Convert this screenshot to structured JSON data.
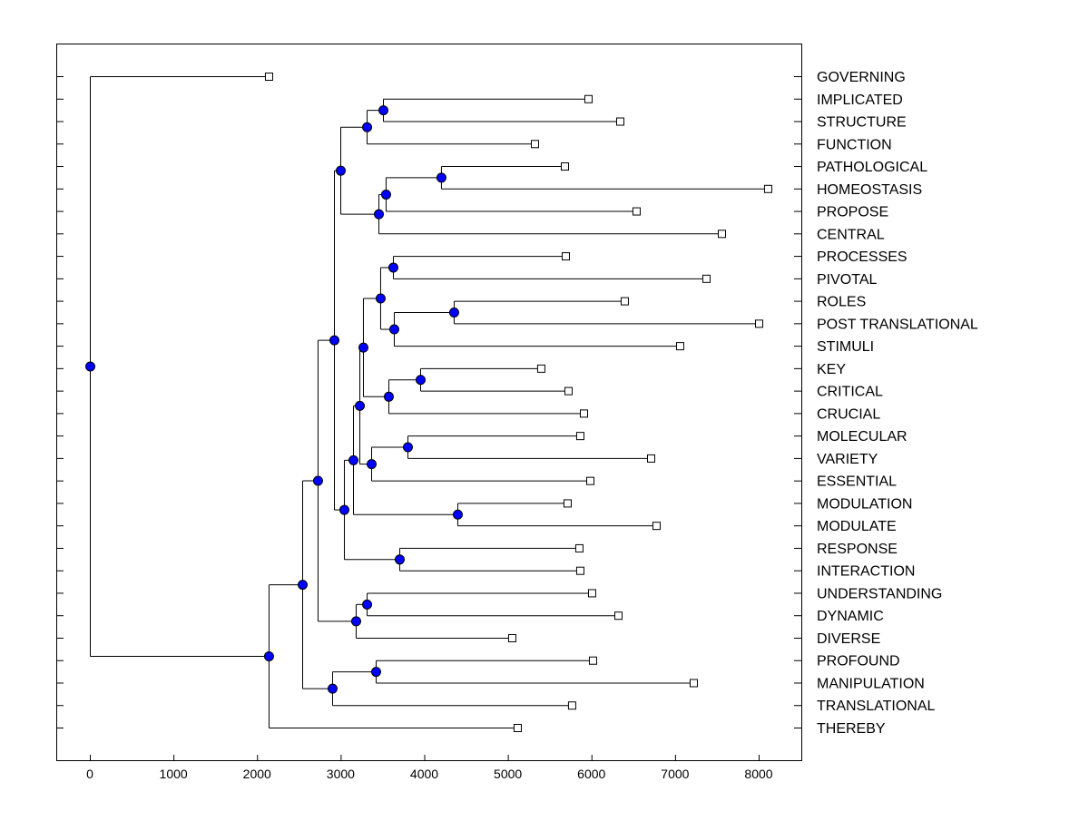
{
  "chart_data": {
    "type": "dendrogram",
    "orientation": "horizontal",
    "xlim": [
      -400,
      8500
    ],
    "x_ticks": [
      0,
      1000,
      2000,
      3000,
      4000,
      5000,
      6000,
      7000,
      8000
    ],
    "x_tick_labels": [
      "0",
      "1000",
      "2000",
      "3000",
      "4000",
      "5000",
      "6000",
      "7000",
      "8000"
    ],
    "leaf_order": [
      "GOVERNING",
      "IMPLICATED",
      "STRUCTURE",
      "FUNCTION",
      "PATHOLOGICAL",
      "HOMEOSTASIS",
      "PROPOSE",
      "CENTRAL",
      "PROCESSES",
      "PIVOTAL",
      "ROLES",
      "POST TRANSLATIONAL",
      "STIMULI",
      "KEY",
      "CRITICAL",
      "CRUCIAL",
      "MOLECULAR",
      "VARIETY",
      "ESSENTIAL",
      "MODULATION",
      "MODULATE",
      "RESPONSE",
      "INTERACTION",
      "UNDERSTANDING",
      "DYNAMIC",
      "DIVERSE",
      "PROFOUND",
      "MANIPULATION",
      "TRANSLATIONAL",
      "THEREBY"
    ],
    "colors": {
      "internal_node": "#0000ff",
      "leaf_node": "#ffffff",
      "line": "#000000"
    },
    "tree": {
      "value": 0,
      "children": [
        {
          "label": "GOVERNING",
          "value": 2138
        },
        {
          "value": 2138,
          "children": [
            {
              "value": 2540,
              "children": [
                {
                  "value": 2724,
                  "children": [
                    {
                      "value": 2920,
                      "children": [
                        {
                          "value": 2996,
                          "children": [
                            {
                              "value": 3311,
                              "children": [
                                {
                                  "value": 3506,
                                  "children": [
                                    {
                                      "label": "IMPLICATED",
                                      "value": 5959
                                    },
                                    {
                                      "label": "STRUCTURE",
                                      "value": 6339
                                    }
                                  ]
                                },
                                {
                                  "label": "FUNCTION",
                                  "value": 5319
                                }
                              ]
                            },
                            {
                              "value": 3452,
                              "children": [
                                {
                                  "value": 3538,
                                  "children": [
                                    {
                                      "value": 4200,
                                      "children": [
                                        {
                                          "label": "PATHOLOGICAL",
                                          "value": 5677
                                        },
                                        {
                                          "label": "HOMEOSTASIS",
                                          "value": 8108
                                        }
                                      ]
                                    },
                                    {
                                      "label": "PROPOSE",
                                      "value": 6534
                                    }
                                  ]
                                },
                                {
                                  "label": "CENTRAL",
                                  "value": 7555
                                }
                              ]
                            }
                          ]
                        },
                        {
                          "value": 3039,
                          "children": [
                            {
                              "value": 3148,
                              "children": [
                                {
                                  "value": 3224,
                                  "children": [
                                    {
                                      "value": 3267,
                                      "children": [
                                        {
                                          "value": 3473,
                                          "children": [
                                            {
                                              "value": 3625,
                                              "children": [
                                                {
                                                  "label": "PROCESSES",
                                                  "value": 5688
                                                },
                                                {
                                                  "label": "PIVOTAL",
                                                  "value": 7370
                                                }
                                              ]
                                            },
                                            {
                                              "value": 3636,
                                              "children": [
                                                {
                                                  "value": 4352,
                                                  "children": [
                                                    {
                                                      "label": "ROLES",
                                                      "value": 6393
                                                    },
                                                    {
                                                      "label": "POST TRANSLATIONAL",
                                                      "value": 8000
                                                    }
                                                  ]
                                                },
                                                {
                                                  "label": "STIMULI",
                                                  "value": 7055
                                                }
                                              ]
                                            }
                                          ]
                                        },
                                        {
                                          "value": 3571,
                                          "children": [
                                            {
                                              "value": 3951,
                                              "children": [
                                                {
                                                  "label": "KEY",
                                                  "value": 5394
                                                },
                                                {
                                                  "label": "CRITICAL",
                                                  "value": 5720
                                                }
                                              ]
                                            },
                                            {
                                              "label": "CRUCIAL",
                                              "value": 5905
                                            }
                                          ]
                                        }
                                      ]
                                    },
                                    {
                                      "value": 3365,
                                      "children": [
                                        {
                                          "value": 3799,
                                          "children": [
                                            {
                                              "label": "MOLECULAR",
                                              "value": 5861
                                            },
                                            {
                                              "label": "VARIETY",
                                              "value": 6708
                                            }
                                          ]
                                        },
                                        {
                                          "label": "ESSENTIAL",
                                          "value": 5981
                                        }
                                      ]
                                    }
                                  ]
                                },
                                {
                                  "value": 4396,
                                  "children": [
                                    {
                                      "label": "MODULATION",
                                      "value": 5709
                                    },
                                    {
                                      "label": "MODULATE",
                                      "value": 6773
                                    }
                                  ]
                                }
                              ]
                            },
                            {
                              "value": 3701,
                              "children": [
                                {
                                  "label": "RESPONSE",
                                  "value": 5850
                                },
                                {
                                  "label": "INTERACTION",
                                  "value": 5861
                                }
                              ]
                            }
                          ]
                        }
                      ]
                    },
                    {
                      "value": 3180,
                      "children": [
                        {
                          "value": 3311,
                          "children": [
                            {
                              "label": "UNDERSTANDING",
                              "value": 6002
                            },
                            {
                              "label": "DYNAMIC",
                              "value": 6317
                            }
                          ]
                        },
                        {
                          "label": "DIVERSE",
                          "value": 5047
                        }
                      ]
                    }
                  ]
                },
                {
                  "value": 2898,
                  "children": [
                    {
                      "value": 3419,
                      "children": [
                        {
                          "label": "PROFOUND",
                          "value": 6013
                        },
                        {
                          "label": "MANIPULATION",
                          "value": 7218
                        }
                      ]
                    },
                    {
                      "label": "TRANSLATIONAL",
                      "value": 5763
                    }
                  ]
                }
              ]
            },
            {
              "label": "THEREBY",
              "value": 5112
            }
          ]
        }
      ]
    }
  }
}
